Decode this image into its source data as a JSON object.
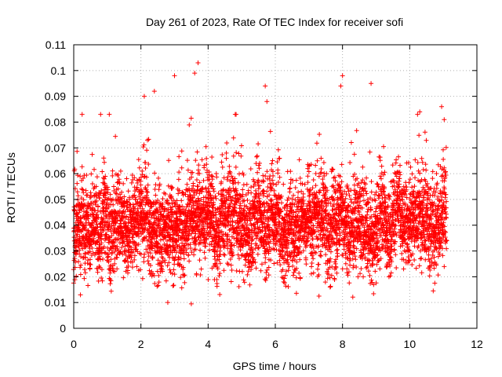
{
  "chart_data": {
    "type": "scatter",
    "title": "Day 261 of 2023, Rate Of TEC Index for receiver sofi",
    "xlabel": "GPS time / hours",
    "ylabel": "ROTI / TECUs",
    "xlim": [
      0,
      12
    ],
    "ylim": [
      0,
      0.11
    ],
    "x_ticks": [
      "0",
      "2",
      "4",
      "6",
      "8",
      "10",
      "12"
    ],
    "y_ticks": [
      "0",
      "0.01",
      "0.02",
      "0.03",
      "0.04",
      "0.05",
      "0.06",
      "0.07",
      "0.08",
      "0.09",
      "0.1",
      "0.11"
    ],
    "grid": true,
    "marker": "plus",
    "marker_color": "#ff0000",
    "series": [
      {
        "name": "ROTI",
        "x_range_hours": [
          0.0,
          11.1
        ],
        "typical_range": [
          0.015,
          0.07
        ],
        "median_approx": 0.04,
        "notable_peaks": [
          {
            "x": 0.25,
            "y": 0.083
          },
          {
            "x": 0.8,
            "y": 0.083
          },
          {
            "x": 2.1,
            "y": 0.09
          },
          {
            "x": 2.4,
            "y": 0.092
          },
          {
            "x": 3.0,
            "y": 0.098
          },
          {
            "x": 3.6,
            "y": 0.099
          },
          {
            "x": 3.7,
            "y": 0.103
          },
          {
            "x": 5.7,
            "y": 0.094
          },
          {
            "x": 5.75,
            "y": 0.088
          },
          {
            "x": 8.0,
            "y": 0.098
          },
          {
            "x": 7.95,
            "y": 0.094
          },
          {
            "x": 8.85,
            "y": 0.095
          },
          {
            "x": 10.3,
            "y": 0.084
          },
          {
            "x": 10.95,
            "y": 0.086
          }
        ],
        "notable_lows": [
          {
            "x": 0.2,
            "y": 0.013
          },
          {
            "x": 3.5,
            "y": 0.0095
          },
          {
            "x": 2.8,
            "y": 0.01
          },
          {
            "x": 7.3,
            "y": 0.0125
          },
          {
            "x": 10.7,
            "y": 0.0145
          }
        ]
      }
    ]
  }
}
